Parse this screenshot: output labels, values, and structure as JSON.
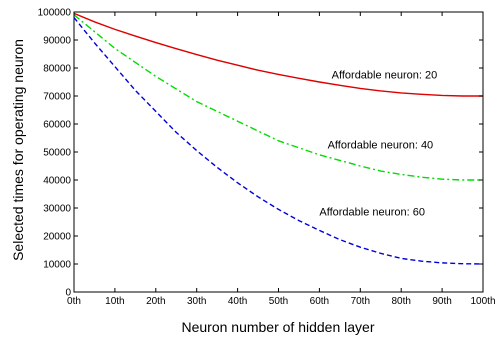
{
  "chart_data": {
    "type": "line",
    "title": "",
    "xlabel": "Neuron number of hidden layer",
    "ylabel": "Selected times for operating neuron",
    "x_ticks": [
      0,
      10,
      20,
      30,
      40,
      50,
      60,
      70,
      80,
      90,
      100
    ],
    "x_tick_labels": [
      "0th",
      "10th",
      "20th",
      "30th",
      "40th",
      "50th",
      "60th",
      "70th",
      "80th",
      "90th",
      "100th"
    ],
    "xlim": [
      0,
      100
    ],
    "ylim": [
      0,
      100000
    ],
    "y_ticks": [
      0,
      10000,
      20000,
      30000,
      40000,
      50000,
      60000,
      70000,
      80000,
      90000,
      100000
    ],
    "y_tick_labels": [
      "0",
      "10000",
      "20000",
      "30000",
      "40000",
      "50000",
      "60000",
      "70000",
      "80000",
      "90000",
      "100000"
    ],
    "grid": false,
    "series": [
      {
        "color": "#dd0000",
        "line_style": "solid",
        "x": [
          0,
          5,
          10,
          15,
          20,
          25,
          30,
          35,
          40,
          45,
          50,
          55,
          60,
          65,
          70,
          75,
          80,
          85,
          90,
          95,
          100
        ],
        "values": [
          99500,
          96500,
          93800,
          91400,
          89100,
          86900,
          84800,
          82800,
          81000,
          79200,
          77700,
          76300,
          75000,
          73800,
          72700,
          71800,
          71100,
          70600,
          70200,
          70000,
          70000
        ]
      },
      {
        "color": "#00dd00",
        "line_style": "dashdot",
        "x": [
          0,
          5,
          10,
          15,
          20,
          25,
          30,
          35,
          40,
          45,
          50,
          55,
          60,
          65,
          70,
          75,
          80,
          85,
          90,
          95,
          100
        ],
        "values": [
          99000,
          93000,
          87000,
          82000,
          77000,
          72500,
          68000,
          64500,
          61000,
          57500,
          54000,
          51500,
          49000,
          47000,
          45000,
          43200,
          42000,
          41000,
          40300,
          40000,
          40000
        ]
      },
      {
        "color": "#0000dd",
        "line_style": "dashed",
        "x": [
          0,
          5,
          10,
          15,
          20,
          25,
          30,
          35,
          40,
          45,
          50,
          55,
          60,
          65,
          70,
          75,
          80,
          85,
          90,
          95,
          100
        ],
        "values": [
          98000,
          89000,
          80500,
          72000,
          64500,
          57000,
          50500,
          44500,
          39000,
          34000,
          29500,
          25500,
          22000,
          18700,
          16000,
          13800,
          12000,
          11000,
          10400,
          10100,
          10000
        ]
      }
    ],
    "annotations": [
      {
        "text": "Affordable neuron: 20",
        "x": 63,
        "y": 76300
      },
      {
        "text": "Affordable neuron: 40",
        "x": 62,
        "y": 51300
      },
      {
        "text": "Affordable neuron: 60",
        "x": 60,
        "y": 27300
      }
    ]
  }
}
